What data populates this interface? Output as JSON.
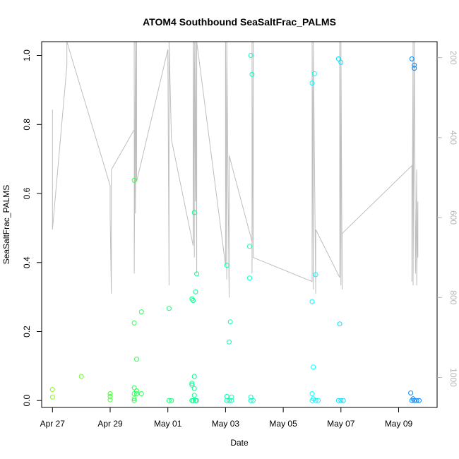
{
  "chart_data": {
    "type": "scatter",
    "title": "ATOM4 Southbound SeaSaltFrac_PALMS",
    "xlabel": "Date",
    "ylabel": "SeaSaltFrac_PALMS",
    "x_ticks": [
      "Apr 27",
      "Apr 29",
      "May 01",
      "May 03",
      "May 05",
      "May 07",
      "May 09"
    ],
    "y_ticks": [
      "0.0",
      "0.2",
      "0.4",
      "0.6",
      "0.8",
      "1.0"
    ],
    "y_ticks_right": [
      "200",
      "400",
      "600",
      "800",
      "1000"
    ],
    "xlim": [
      "2018-04-26T15:00",
      "2018-05-10T08:00"
    ],
    "ylim": [
      -0.02,
      1.04
    ],
    "ylim_right": [
      1075,
      160
    ],
    "grid": false,
    "colors": {
      "points_start": "#7fff00",
      "points_mid": "#00ff80",
      "points_cyan": "#00ffff",
      "points_end": "#0080ff",
      "altitude_line": "#bebebe",
      "right_axis": "#b5b5b5"
    },
    "series": [
      {
        "type": "scatter",
        "points": [
          [
            "2018-04-27T00:00",
            0.032
          ],
          [
            "2018-04-27T00:00",
            0.01
          ],
          [
            "2018-04-28T00:00",
            0.07
          ],
          [
            "2018-04-29T00:00",
            0.012
          ],
          [
            "2018-04-29T00:00",
            0.02
          ],
          [
            "2018-04-29T00:00",
            0.002
          ],
          [
            "2018-04-29T20:00",
            0.638
          ],
          [
            "2018-04-29T20:00",
            0.225
          ],
          [
            "2018-04-29T20:00",
            0.037
          ],
          [
            "2018-04-29T20:00",
            0.02
          ],
          [
            "2018-04-29T20:00",
            0.005
          ],
          [
            "2018-04-29T20:00",
            0.0
          ],
          [
            "2018-04-29T22:00",
            0.12
          ],
          [
            "2018-04-29T22:00",
            0.028
          ],
          [
            "2018-04-29T22:00",
            0.02
          ],
          [
            "2018-04-30T02:00",
            0.257
          ],
          [
            "2018-04-30T02:00",
            0.02
          ],
          [
            "2018-05-01T01:00",
            0.267
          ],
          [
            "2018-05-01T01:00",
            0.0
          ],
          [
            "2018-05-01T03:00",
            0.0
          ],
          [
            "2018-05-01T20:00",
            0.295
          ],
          [
            "2018-05-01T20:00",
            0.05
          ],
          [
            "2018-05-01T20:00",
            0.045
          ],
          [
            "2018-05-01T20:00",
            0.0
          ],
          [
            "2018-05-01T21:00",
            0.29
          ],
          [
            "2018-05-01T22:00",
            0.545
          ],
          [
            "2018-05-01T22:00",
            0.07
          ],
          [
            "2018-05-01T22:00",
            0.035
          ],
          [
            "2018-05-01T22:00",
            0.015
          ],
          [
            "2018-05-01T23:00",
            0.315
          ],
          [
            "2018-05-02T00:00",
            0.367
          ],
          [
            "2018-05-02T00:00",
            0.0
          ],
          [
            "2018-05-01T21:00",
            0.0
          ],
          [
            "2018-05-01T23:00",
            0.0
          ],
          [
            "2018-05-03T01:00",
            0.392
          ],
          [
            "2018-05-03T03:00",
            0.17
          ],
          [
            "2018-05-03T04:00",
            0.228
          ],
          [
            "2018-05-03T01:00",
            0.012
          ],
          [
            "2018-05-03T01:00",
            0.0
          ],
          [
            "2018-05-03T03:00",
            0.0
          ],
          [
            "2018-05-03T05:00",
            0.01
          ],
          [
            "2018-05-03T05:00",
            0.0
          ],
          [
            "2018-05-03T21:00",
            1.0
          ],
          [
            "2018-05-03T22:00",
            0.945
          ],
          [
            "2018-05-03T20:00",
            0.447
          ],
          [
            "2018-05-03T20:00",
            0.355
          ],
          [
            "2018-05-03T21:00",
            0.01
          ],
          [
            "2018-05-03T21:00",
            0.0
          ],
          [
            "2018-05-03T23:00",
            0.0
          ],
          [
            "2018-05-06T00:00",
            0.92
          ],
          [
            "2018-05-06T02:00",
            0.947
          ],
          [
            "2018-05-06T03:00",
            0.365
          ],
          [
            "2018-05-06T00:00",
            0.287
          ],
          [
            "2018-05-06T01:00",
            0.097
          ],
          [
            "2018-05-06T00:00",
            0.02
          ],
          [
            "2018-05-06T01:00",
            0.005
          ],
          [
            "2018-05-06T00:00",
            0.0
          ],
          [
            "2018-05-06T03:00",
            0.0
          ],
          [
            "2018-05-06T05:00",
            0.0
          ],
          [
            "2018-05-06T22:00",
            0.99
          ],
          [
            "2018-05-07T00:00",
            0.98
          ],
          [
            "2018-05-06T23:00",
            0.222
          ],
          [
            "2018-05-06T22:00",
            0.0
          ],
          [
            "2018-05-07T00:00",
            0.0
          ],
          [
            "2018-05-07T02:00",
            0.0
          ],
          [
            "2018-05-09T11:00",
            0.99
          ],
          [
            "2018-05-09T13:00",
            0.972
          ],
          [
            "2018-05-09T13:00",
            0.963
          ],
          [
            "2018-05-09T10:00",
            0.022
          ],
          [
            "2018-05-09T12:00",
            0.005
          ],
          [
            "2018-05-09T11:00",
            0.0
          ],
          [
            "2018-05-09T13:00",
            0.0
          ],
          [
            "2018-05-09T15:00",
            0.0
          ],
          [
            "2018-05-09T17:00",
            0.0
          ]
        ]
      },
      {
        "type": "line",
        "axis": "right",
        "points": [
          [
            "2018-04-27T00:00",
            400
          ],
          [
            "2018-04-27T00:00",
            330
          ],
          [
            "2018-04-27T00:00",
            630
          ],
          [
            "2018-04-27T12:00",
            220
          ],
          [
            "2018-04-27T12:00",
            140
          ],
          [
            "2018-04-29T00:00",
            520
          ],
          [
            "2018-04-29T00:00",
            600
          ],
          [
            "2018-04-29T01:00",
            790
          ],
          [
            "2018-04-29T01:00",
            480
          ],
          [
            "2018-04-29T20:00",
            380
          ],
          [
            "2018-04-29T20:00",
            140
          ],
          [
            "2018-04-29T20:00",
            740
          ],
          [
            "2018-04-29T21:00",
            140
          ],
          [
            "2018-04-29T21:00",
            590
          ],
          [
            "2018-04-29T22:00",
            140
          ],
          [
            "2018-04-29T22:00",
            510
          ],
          [
            "2018-05-01T00:00",
            180
          ],
          [
            "2018-05-01T01:00",
            770
          ],
          [
            "2018-05-01T01:00",
            140
          ],
          [
            "2018-05-01T03:00",
            405
          ],
          [
            "2018-05-01T21:00",
            670
          ],
          [
            "2018-05-01T21:00",
            140
          ],
          [
            "2018-05-01T22:00",
            700
          ],
          [
            "2018-05-01T22:00",
            140
          ],
          [
            "2018-05-01T23:00",
            560
          ],
          [
            "2018-05-01T23:00",
            140
          ],
          [
            "2018-05-02T00:00",
            740
          ],
          [
            "2018-05-02T00:00",
            140
          ],
          [
            "2018-05-03T00:00",
            720
          ],
          [
            "2018-05-03T00:00",
            140
          ],
          [
            "2018-05-03T01:00",
            755
          ],
          [
            "2018-05-03T01:00",
            140
          ],
          [
            "2018-05-03T03:00",
            800
          ],
          [
            "2018-05-03T03:00",
            445
          ],
          [
            "2018-05-03T22:00",
            660
          ],
          [
            "2018-05-03T22:00",
            140
          ],
          [
            "2018-05-03T22:00",
            740
          ],
          [
            "2018-05-03T23:00",
            140
          ],
          [
            "2018-05-03T23:00",
            700
          ],
          [
            "2018-05-06T00:00",
            760
          ],
          [
            "2018-05-06T00:00",
            140
          ],
          [
            "2018-05-06T01:00",
            780
          ],
          [
            "2018-05-06T01:00",
            140
          ],
          [
            "2018-05-06T03:00",
            790
          ],
          [
            "2018-05-06T03:00",
            630
          ],
          [
            "2018-05-06T23:00",
            750
          ],
          [
            "2018-05-06T23:00",
            140
          ],
          [
            "2018-05-07T00:00",
            770
          ],
          [
            "2018-05-07T00:00",
            140
          ],
          [
            "2018-05-07T01:00",
            780
          ],
          [
            "2018-05-07T01:00",
            640
          ],
          [
            "2018-05-09T11:00",
            470
          ],
          [
            "2018-05-09T11:00",
            760
          ],
          [
            "2018-05-09T12:00",
            140
          ],
          [
            "2018-05-09T12:00",
            770
          ],
          [
            "2018-05-09T13:00",
            140
          ],
          [
            "2018-05-09T14:00",
            740
          ],
          [
            "2018-05-09T15:00",
            480
          ],
          [
            "2018-05-09T15:00",
            770
          ],
          [
            "2018-05-09T16:00",
            560
          ],
          [
            "2018-05-09T16:00",
            700
          ]
        ]
      }
    ]
  }
}
